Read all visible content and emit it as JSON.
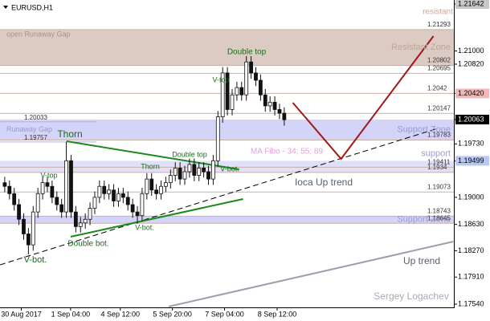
{
  "chart_data": {
    "type": "candlestick",
    "title": "EURUSD,H1",
    "open": [
      1.192,
      1.1915,
      1.1905,
      1.189,
      1.187,
      1.185,
      1.1835,
      1.188,
      1.1905,
      1.192,
      1.1915,
      1.19,
      1.189,
      1.188,
      1.195,
      1.188,
      1.186,
      1.1865,
      1.187,
      1.1885,
      1.19,
      1.1915,
      1.1905,
      1.191,
      1.1895,
      1.1905,
      1.19,
      1.189,
      1.188,
      1.1875,
      1.1905,
      1.1925,
      1.191,
      1.1905,
      1.1915,
      1.192,
      1.193,
      1.194,
      1.1925,
      1.1935,
      1.1945,
      1.193,
      1.194,
      1.1935,
      1.1925,
      1.195,
      1.201,
      1.207,
      1.202,
      1.204,
      1.205,
      1.204,
      1.2085,
      1.207,
      1.206,
      1.204,
      1.2025,
      1.203,
      1.202,
      1.2015
    ],
    "high": [
      1.1928,
      1.1923,
      1.1913,
      1.1898,
      1.1878,
      1.1858,
      1.1888,
      1.1913,
      1.1928,
      1.1928,
      1.1923,
      1.1908,
      1.1898,
      1.1976,
      1.1958,
      1.1888,
      1.1873,
      1.1878,
      1.1893,
      1.1908,
      1.1923,
      1.1923,
      1.1918,
      1.1918,
      1.1913,
      1.1913,
      1.1908,
      1.1898,
      1.1888,
      1.1913,
      1.1933,
      1.1933,
      1.1918,
      1.1923,
      1.1928,
      1.1938,
      1.1948,
      1.1948,
      1.1943,
      1.1953,
      1.1953,
      1.1948,
      1.1948,
      1.1943,
      1.1958,
      1.2018,
      1.2078,
      1.2078,
      1.2048,
      1.2058,
      1.2058,
      1.2093,
      1.2093,
      1.2078,
      1.2068,
      1.2048,
      1.2038,
      1.2038,
      1.2028,
      1.2023
    ],
    "low": [
      1.1907,
      1.1897,
      1.1882,
      1.1862,
      1.1842,
      1.1822,
      1.1827,
      1.1872,
      1.1897,
      1.1907,
      1.1892,
      1.1882,
      1.1872,
      1.1872,
      1.1872,
      1.1852,
      1.1852,
      1.1857,
      1.1862,
      1.1877,
      1.1892,
      1.1897,
      1.1897,
      1.1887,
      1.1887,
      1.1892,
      1.1882,
      1.1872,
      1.1864,
      1.1867,
      1.1897,
      1.1902,
      1.1897,
      1.1897,
      1.1907,
      1.1912,
      1.1922,
      1.1917,
      1.1917,
      1.1927,
      1.1922,
      1.1922,
      1.1927,
      1.1917,
      1.1917,
      1.1942,
      1.2002,
      1.2012,
      1.2012,
      1.2032,
      1.2032,
      1.2032,
      1.2062,
      1.2052,
      1.2032,
      1.2017,
      1.2017,
      1.2012,
      1.2007,
      1.1998
    ],
    "close": [
      1.1915,
      1.1905,
      1.189,
      1.187,
      1.185,
      1.1835,
      1.188,
      1.1905,
      1.192,
      1.1915,
      1.19,
      1.189,
      1.188,
      1.195,
      1.188,
      1.186,
      1.1865,
      1.187,
      1.1885,
      1.19,
      1.1915,
      1.1905,
      1.191,
      1.1895,
      1.1905,
      1.19,
      1.189,
      1.188,
      1.1875,
      1.1905,
      1.1925,
      1.191,
      1.1905,
      1.1915,
      1.192,
      1.193,
      1.194,
      1.1925,
      1.1935,
      1.1945,
      1.193,
      1.194,
      1.1935,
      1.1925,
      1.195,
      1.201,
      1.207,
      1.202,
      1.204,
      1.205,
      1.204,
      1.2085,
      1.207,
      1.206,
      1.204,
      1.2025,
      1.203,
      1.202,
      1.2015,
      1.2006
    ],
    "xlim": [
      -1,
      94.8
    ],
    "ylim": [
      1.1754,
      1.21642
    ],
    "xticks": [
      {
        "value": 3.5,
        "label": "30 Aug 2017"
      },
      {
        "value": 13.9,
        "label": "1 Sep 04:00"
      },
      {
        "value": 24.4,
        "label": "4 Sep 12:00"
      },
      {
        "value": 35.4,
        "label": "5 Sep 20:00"
      },
      {
        "value": 46.4,
        "label": "7 Sep 04:00"
      },
      {
        "value": 57.5,
        "label": "8 Sep 12:00"
      }
    ],
    "yticks": [
      {
        "value": 1.21642,
        "label": "1.21642",
        "color": "#c8c8c8"
      },
      {
        "value": 1.21,
        "label": "1.21000"
      },
      {
        "value": 1.2082,
        "label": "1.20820"
      },
      {
        "value": 1.2042,
        "label": "1.20420",
        "color": "#f2b8b8"
      },
      {
        "value": 1.20063,
        "label": "1.20063",
        "color": "#000000"
      },
      {
        "value": 1.1973,
        "label": "1.19730"
      },
      {
        "value": 1.19499,
        "label": "1.19499",
        "color": "#b8c8f4"
      },
      {
        "value": 1.19,
        "label": "1.19000"
      },
      {
        "value": 1.1863,
        "label": "1.18630"
      },
      {
        "value": 1.1827,
        "label": "1.18270"
      },
      {
        "value": 1.1791,
        "label": "1.17910"
      },
      {
        "value": 1.1754,
        "label": "1.17540"
      }
    ],
    "zones": [
      {
        "from": 1.21293,
        "to": 1.20802,
        "color": "#dccbc3",
        "label_left": "open Runaway Gap",
        "label_right": "Resistant Zone"
      },
      {
        "from": 1.20063,
        "to": 1.19783,
        "color": "#d4d4f8",
        "label_left": "Runaway Gap",
        "label_right": "Support Zone"
      },
      {
        "from": 1.19499,
        "to": 1.1934,
        "color": "#e0e0fa",
        "label_right": "support"
      },
      {
        "from": 1.18743,
        "to": 1.18645,
        "color": "#d4d4f8",
        "label_right": "Support Zone"
      }
    ],
    "levels": [
      1.21293,
      1.20802,
      1.20695,
      1.2042,
      1.20147,
      1.19783,
      1.19411,
      1.1934,
      1.19073,
      1.18743,
      1.18645
    ],
    "levels_left": [
      1.20033,
      1.19757
    ],
    "trendlines": [
      {
        "label": "Ioca Up trend",
        "color": "#000000",
        "dashed": true,
        "points": [
          [
            -1,
            1.18077
          ],
          [
            91.4,
            1.19942
          ]
        ]
      },
      {
        "label": "Up trend",
        "color": "#9aa0ac",
        "points": [
          [
            34.6,
            1.17507
          ],
          [
            94.7,
            1.18395
          ]
        ]
      },
      {
        "color": "#1a8a1a",
        "points": [
          [
            13.05,
            1.19766
          ],
          [
            49.5,
            1.19382
          ]
        ]
      },
      {
        "color": "#1a8a1a",
        "points": [
          [
            13.9,
            1.18461
          ],
          [
            50.3,
            1.18977
          ]
        ]
      },
      {
        "color": "#a01818",
        "points": [
          [
            60.8,
            1.20293
          ],
          [
            71,
            1.19525
          ],
          [
            90.5,
            1.21203
          ]
        ]
      }
    ],
    "annotations": [
      "resistant",
      "Thorn",
      "Double top",
      "V-top",
      "Double top",
      "Thorn",
      "V-top",
      "V-bot.",
      "V-bot.",
      "Double bot.",
      "V-bot.",
      "MA Fibo - 34; 55; 89",
      "Sergey Logachev"
    ]
  }
}
